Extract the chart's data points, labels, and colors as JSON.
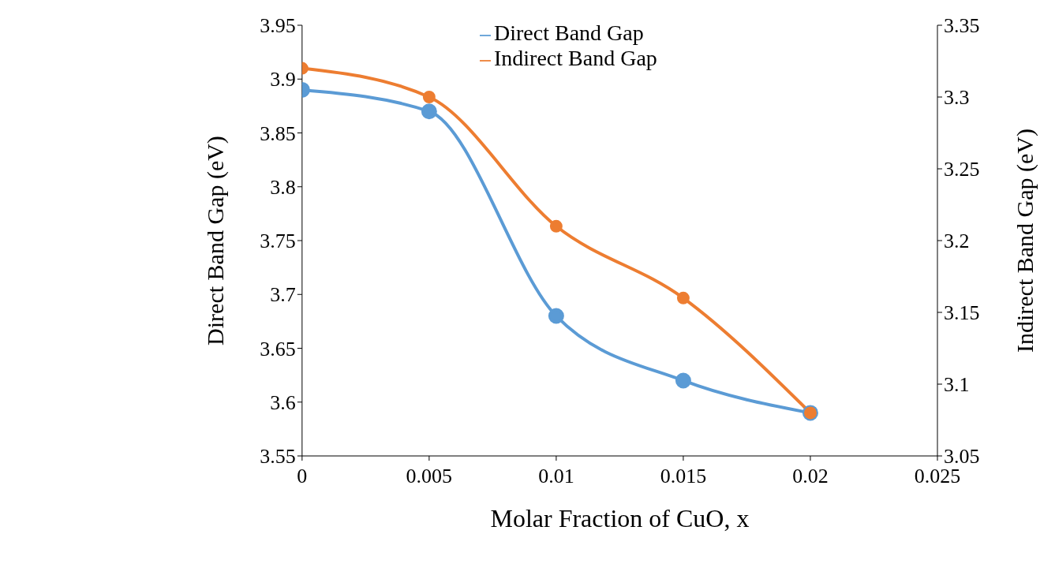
{
  "chart_data": {
    "type": "line",
    "xlabel": "Molar Fraction of CuO, x",
    "ylabel": "Direct Band Gap (eV)",
    "y2label": "Indirect Band Gap (eV)",
    "x": [
      0,
      0.005,
      0.01,
      0.015,
      0.02
    ],
    "series": [
      {
        "name": "Direct Band Gap",
        "color": "#5b9bd5",
        "values": [
          3.89,
          3.87,
          3.68,
          3.62,
          3.59
        ]
      },
      {
        "name": "Indirect Band Gap",
        "color": "#ed7d31",
        "axis": "y2",
        "values": [
          3.32,
          3.3,
          3.21,
          3.16,
          3.08
        ]
      }
    ],
    "xlim": [
      0,
      0.025
    ],
    "xticks": [
      0,
      0.005,
      0.01,
      0.015,
      0.02,
      0.025
    ],
    "ylim": [
      3.55,
      3.95
    ],
    "yticks": [
      3.55,
      3.6,
      3.65,
      3.7,
      3.75,
      3.8,
      3.85,
      3.9,
      3.95
    ],
    "y2lim": [
      3.05,
      3.35
    ],
    "y2ticks": [
      3.05,
      3.1,
      3.15,
      3.2,
      3.25,
      3.3,
      3.35
    ],
    "grid": false,
    "legend": "top",
    "marker": "circle",
    "line_style": "solid"
  }
}
